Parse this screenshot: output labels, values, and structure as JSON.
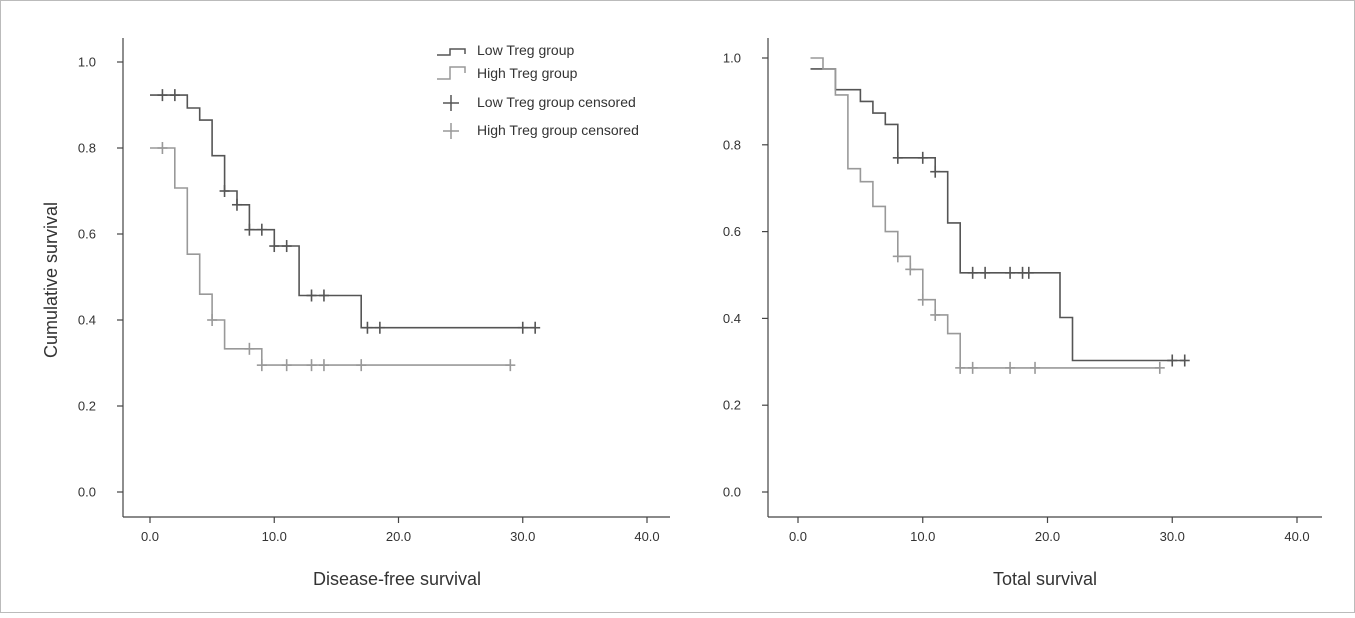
{
  "chart_data": [
    {
      "type": "line",
      "subtype": "kaplan-meier",
      "xlabel": "Disease-free survival",
      "ylabel": "Cumulative survival",
      "xlim": [
        0,
        40
      ],
      "ylim": [
        0,
        1.0
      ],
      "xticks": [
        "0.0",
        "10.0",
        "20.0",
        "30.0",
        "40.0"
      ],
      "yticks": [
        "0.0",
        "0.2",
        "0.4",
        "0.6",
        "0.8",
        "1.0"
      ],
      "grid": false,
      "legend": {
        "position": "top-right",
        "entries": [
          "Low Treg group",
          "High Treg group",
          "Low Treg group censored",
          "High Treg group censored"
        ]
      },
      "series": [
        {
          "name": "Low Treg group",
          "color": "#555555",
          "steps": [
            [
              0,
              0.923
            ],
            [
              3,
              0.893
            ],
            [
              4,
              0.865
            ],
            [
              5,
              0.782
            ],
            [
              6,
              0.7
            ],
            [
              7,
              0.668
            ],
            [
              8,
              0.61
            ],
            [
              10,
              0.572
            ],
            [
              12,
              0.457
            ],
            [
              17,
              0.382
            ],
            [
              31,
              0.382
            ]
          ],
          "censored": [
            [
              1,
              0.923
            ],
            [
              2,
              0.923
            ],
            [
              6,
              0.7
            ],
            [
              7,
              0.668
            ],
            [
              8,
              0.61
            ],
            [
              9,
              0.61
            ],
            [
              10,
              0.572
            ],
            [
              11,
              0.572
            ],
            [
              13,
              0.457
            ],
            [
              14,
              0.457
            ],
            [
              17.5,
              0.382
            ],
            [
              18.5,
              0.382
            ],
            [
              30,
              0.382
            ],
            [
              31,
              0.382
            ]
          ]
        },
        {
          "name": "High Treg group",
          "color": "#999999",
          "steps": [
            [
              0,
              0.8
            ],
            [
              2,
              0.707
            ],
            [
              3,
              0.553
            ],
            [
              4,
              0.46
            ],
            [
              5,
              0.4
            ],
            [
              6,
              0.333
            ],
            [
              9,
              0.295
            ],
            [
              29,
              0.295
            ]
          ],
          "censored": [
            [
              1,
              0.8
            ],
            [
              5,
              0.4
            ],
            [
              8,
              0.333
            ],
            [
              9,
              0.295
            ],
            [
              11,
              0.295
            ],
            [
              13,
              0.295
            ],
            [
              14,
              0.295
            ],
            [
              17,
              0.295
            ],
            [
              29,
              0.295
            ]
          ]
        }
      ]
    },
    {
      "type": "line",
      "subtype": "kaplan-meier",
      "xlabel": "Total survival",
      "ylabel": "",
      "xlim": [
        0,
        40
      ],
      "ylim": [
        0,
        1.0
      ],
      "xticks": [
        "0.0",
        "10.0",
        "20.0",
        "30.0",
        "40.0"
      ],
      "yticks": [
        "0.0",
        "0.2",
        "0.4",
        "0.6",
        "0.8",
        "1.0"
      ],
      "grid": false,
      "series": [
        {
          "name": "Low Treg group",
          "color": "#555555",
          "steps": [
            [
              1,
              0.975
            ],
            [
              3,
              0.927
            ],
            [
              5,
              0.9
            ],
            [
              6,
              0.873
            ],
            [
              7,
              0.847
            ],
            [
              8,
              0.77
            ],
            [
              11,
              0.738
            ],
            [
              12,
              0.62
            ],
            [
              13,
              0.505
            ],
            [
              21,
              0.402
            ],
            [
              22,
              0.303
            ],
            [
              31,
              0.303
            ]
          ],
          "censored": [
            [
              8,
              0.77
            ],
            [
              10,
              0.77
            ],
            [
              11,
              0.738
            ],
            [
              14,
              0.505
            ],
            [
              15,
              0.505
            ],
            [
              17,
              0.505
            ],
            [
              18,
              0.505
            ],
            [
              18.5,
              0.505
            ],
            [
              30,
              0.303
            ],
            [
              31,
              0.303
            ]
          ]
        },
        {
          "name": "High Treg group",
          "color": "#999999",
          "steps": [
            [
              1,
              1.0
            ],
            [
              2,
              0.975
            ],
            [
              3,
              0.915
            ],
            [
              4,
              0.745
            ],
            [
              5,
              0.715
            ],
            [
              6,
              0.658
            ],
            [
              7,
              0.6
            ],
            [
              8,
              0.543
            ],
            [
              9,
              0.513
            ],
            [
              10,
              0.443
            ],
            [
              11,
              0.408
            ],
            [
              12,
              0.365
            ],
            [
              13,
              0.286
            ],
            [
              29,
              0.286
            ]
          ],
          "censored": [
            [
              8,
              0.543
            ],
            [
              9,
              0.513
            ],
            [
              10,
              0.443
            ],
            [
              11,
              0.408
            ],
            [
              13,
              0.286
            ],
            [
              14,
              0.286
            ],
            [
              17,
              0.286
            ],
            [
              19,
              0.286
            ],
            [
              29,
              0.286
            ]
          ]
        }
      ]
    }
  ]
}
